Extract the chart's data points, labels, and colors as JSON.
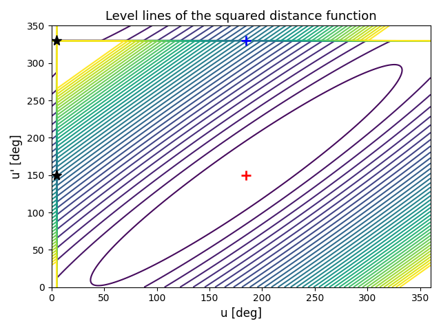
{
  "title": "Level lines of the squared distance function",
  "xlabel": "u [deg]",
  "ylabel": "u' [deg]",
  "xlim": [
    0,
    360
  ],
  "ylim": [
    0,
    350
  ],
  "xticks": [
    0,
    50,
    100,
    150,
    200,
    250,
    300,
    350
  ],
  "yticks": [
    0,
    50,
    100,
    150,
    200,
    250,
    300,
    350
  ],
  "red_plus": [
    185,
    150
  ],
  "blue_plus": [
    185,
    330
  ],
  "star1": [
    5,
    330
  ],
  "star2": [
    5,
    150
  ],
  "n_levels": 40,
  "cmap": "viridis",
  "figsize": [
    6.4,
    4.8
  ],
  "dpi": 100,
  "period_u": 360,
  "period_up": 360,
  "coupling_alpha": 0.95
}
